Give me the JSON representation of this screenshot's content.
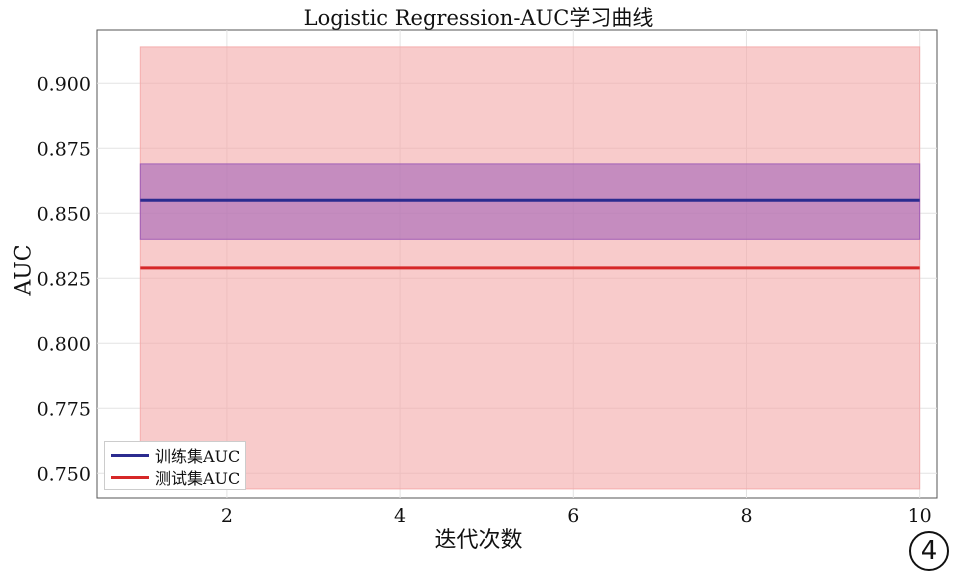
{
  "chart_data": {
    "type": "line",
    "title": "Logistic Regression-AUC学习曲线",
    "xlabel": "迭代次数",
    "ylabel": "AUC",
    "x": [
      1,
      2,
      3,
      4,
      5,
      6,
      7,
      8,
      9,
      10
    ],
    "xlim": [
      0.5,
      10.2
    ],
    "ylim": [
      0.7405,
      0.9205
    ],
    "xticks": [
      2,
      4,
      6,
      8,
      10
    ],
    "yticks": [
      0.75,
      0.775,
      0.8,
      0.825,
      0.85,
      0.875,
      0.9
    ],
    "grid": true,
    "legend_position": "bottom-left",
    "series": [
      {
        "name": "训练集AUC",
        "color": "#2b2b8f",
        "values": [
          0.855,
          0.855,
          0.855,
          0.855,
          0.855,
          0.855,
          0.855,
          0.855,
          0.855,
          0.855
        ],
        "band": [
          0.84,
          0.869
        ],
        "band_color": "#9b59b6"
      },
      {
        "name": "测试集AUC",
        "color": "#d62728",
        "values": [
          0.829,
          0.829,
          0.829,
          0.829,
          0.829,
          0.829,
          0.829,
          0.829,
          0.829,
          0.829
        ],
        "band": [
          0.744,
          0.914
        ],
        "band_color": "#f4a9a8"
      }
    ]
  },
  "badge": "4"
}
